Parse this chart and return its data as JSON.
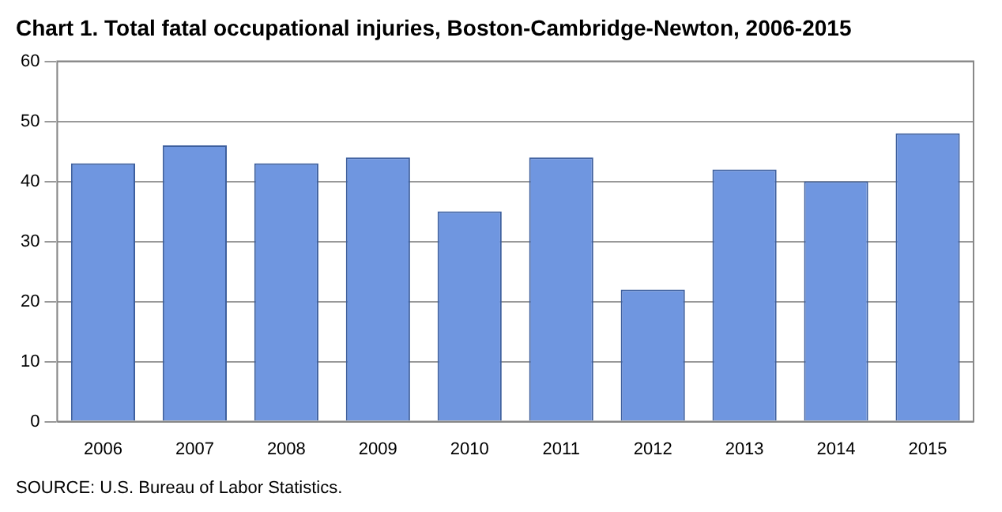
{
  "chart_data": {
    "type": "bar",
    "title": "Chart 1. Total fatal occupational injuries, Boston-Cambridge-Newton, 2006-2015",
    "categories": [
      "2006",
      "2007",
      "2008",
      "2009",
      "2010",
      "2011",
      "2012",
      "2013",
      "2014",
      "2015"
    ],
    "values": [
      43,
      46,
      43,
      44,
      35,
      44,
      22,
      42,
      40,
      48
    ],
    "color": "#6f96e0",
    "ylim": [
      0,
      60
    ],
    "yticks": [
      0,
      10,
      20,
      30,
      40,
      50,
      60
    ],
    "grid": "y",
    "legend": false,
    "annotations": [
      "SOURCE: U.S. Bureau of Labor Statistics."
    ]
  }
}
